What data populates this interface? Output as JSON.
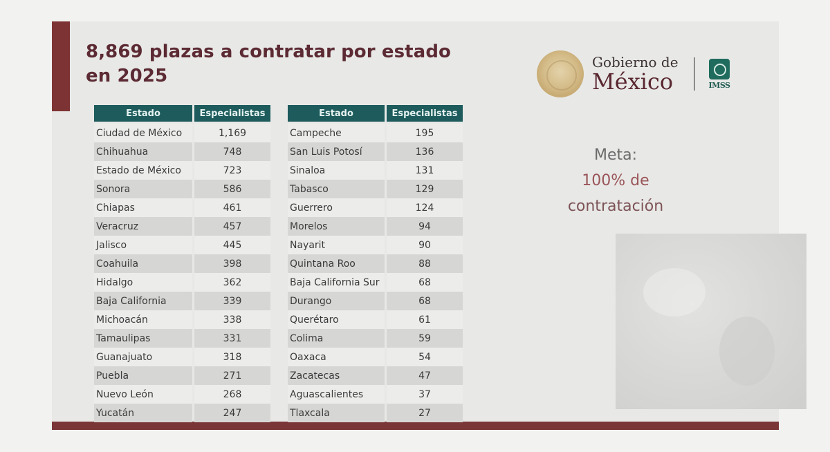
{
  "slide": {
    "title": "8,869 plazas a contratar por estado en 2025",
    "title_line1": "8,869 plazas a contratar por estado",
    "title_line2": "en 2025",
    "total_positions": "8,869",
    "year": "2025"
  },
  "logo": {
    "gobierno_top": "Gobierno de",
    "gobierno_bottom": "México",
    "imss": "IMSS",
    "icons": [
      "coat-of-arms-icon",
      "imss-logo-icon"
    ]
  },
  "tables": [
    {
      "headers": [
        "Estado",
        "Especialistas"
      ],
      "rows": [
        {
          "estado": "Ciudad de México",
          "especialistas": "1,169"
        },
        {
          "estado": "Chihuahua",
          "especialistas": "748"
        },
        {
          "estado": "Estado de México",
          "especialistas": "723"
        },
        {
          "estado": "Sonora",
          "especialistas": "586"
        },
        {
          "estado": "Chiapas",
          "especialistas": "461"
        },
        {
          "estado": "Veracruz",
          "especialistas": "457"
        },
        {
          "estado": "Jalisco",
          "especialistas": "445"
        },
        {
          "estado": "Coahuila",
          "especialistas": "398"
        },
        {
          "estado": "Hidalgo",
          "especialistas": "362"
        },
        {
          "estado": "Baja California",
          "especialistas": "339"
        },
        {
          "estado": "Michoacán",
          "especialistas": "338"
        },
        {
          "estado": "Tamaulipas",
          "especialistas": "331"
        },
        {
          "estado": "Guanajuato",
          "especialistas": "318"
        },
        {
          "estado": "Puebla",
          "especialistas": "271"
        },
        {
          "estado": "Nuevo León",
          "especialistas": "268"
        },
        {
          "estado": "Yucatán",
          "especialistas": "247"
        }
      ]
    },
    {
      "headers": [
        "Estado",
        "Especialistas"
      ],
      "rows": [
        {
          "estado": "Campeche",
          "especialistas": "195"
        },
        {
          "estado": "San Luis Potosí",
          "especialistas": "136"
        },
        {
          "estado": "Sinaloa",
          "especialistas": "131"
        },
        {
          "estado": "Tabasco",
          "especialistas": "129"
        },
        {
          "estado": "Guerrero",
          "especialistas": "124"
        },
        {
          "estado": "Morelos",
          "especialistas": "94"
        },
        {
          "estado": "Nayarit",
          "especialistas": "90"
        },
        {
          "estado": "Quintana Roo",
          "especialistas": "88"
        },
        {
          "estado": "Baja California Sur",
          "especialistas": "68"
        },
        {
          "estado": "Durango",
          "especialistas": "68"
        },
        {
          "estado": "Querétaro",
          "especialistas": "61"
        },
        {
          "estado": "Colima",
          "especialistas": "59"
        },
        {
          "estado": "Oaxaca",
          "especialistas": "54"
        },
        {
          "estado": "Zacatecas",
          "especialistas": "47"
        },
        {
          "estado": "Aguascalientes",
          "especialistas": "37"
        },
        {
          "estado": "Tlaxcala",
          "especialistas": "27"
        }
      ]
    }
  ],
  "meta": {
    "label": "Meta:",
    "goal_line1": "100% de",
    "goal_line2": "contratación"
  },
  "colors": {
    "maroon": "#7d3333",
    "title": "#5c2a33",
    "table_header": "#1d5b5c",
    "row_shade": "#d6d7d5",
    "row_light": "#ecedeb",
    "goal_text": "#9a5458",
    "slide_bg": "#e8e9e7",
    "page_bg": "#f2f3f1"
  }
}
